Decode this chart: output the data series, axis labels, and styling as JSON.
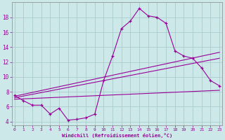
{
  "xlabel": "Windchill (Refroidissement éolien,°C)",
  "background_color": "#cce8e8",
  "grid_color": "#aacccc",
  "line_color": "#990099",
  "hours": [
    0,
    1,
    2,
    3,
    4,
    5,
    6,
    7,
    8,
    9,
    10,
    11,
    12,
    13,
    14,
    15,
    16,
    17,
    18,
    19,
    20,
    21,
    22,
    23
  ],
  "windchill": [
    7.5,
    6.8,
    6.2,
    6.2,
    5.0,
    5.8,
    4.2,
    4.3,
    4.5,
    5.0,
    9.5,
    12.8,
    16.5,
    17.5,
    19.2,
    18.2,
    18.0,
    17.2,
    13.5,
    12.8,
    12.5,
    11.2,
    9.5,
    8.8
  ],
  "linear1": [
    [
      0,
      7.4
    ],
    [
      23,
      13.3
    ]
  ],
  "linear2": [
    [
      0,
      7.2
    ],
    [
      23,
      12.5
    ]
  ],
  "linear3": [
    [
      0,
      7.0
    ],
    [
      23,
      8.2
    ]
  ],
  "ylim": [
    3.5,
    20.0
  ],
  "yticks": [
    4,
    6,
    8,
    10,
    12,
    14,
    16,
    18
  ],
  "xticks": [
    0,
    1,
    2,
    3,
    4,
    5,
    6,
    7,
    8,
    9,
    10,
    11,
    12,
    13,
    14,
    15,
    16,
    17,
    18,
    19,
    20,
    21,
    22,
    23
  ],
  "xlim": [
    -0.3,
    23.3
  ]
}
